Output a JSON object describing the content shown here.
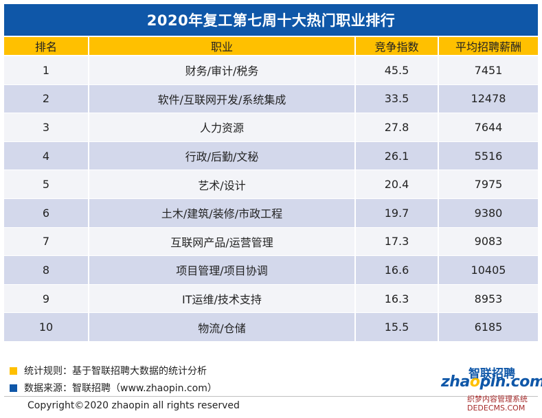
{
  "title": "2020年复工第七周十大热门职业排行",
  "table": {
    "headers": [
      "排名",
      "职业",
      "竞争指数",
      "平均招聘薪酬"
    ],
    "rows": [
      [
        "1",
        "财务/审计/税务",
        "45.5",
        "7451"
      ],
      [
        "2",
        "软件/互联网开发/系统集成",
        "33.5",
        "12478"
      ],
      [
        "3",
        "人力资源",
        "27.8",
        "7644"
      ],
      [
        "4",
        "行政/后勤/文秘",
        "26.1",
        "5516"
      ],
      [
        "5",
        "艺术/设计",
        "20.4",
        "7975"
      ],
      [
        "6",
        "土木/建筑/装修/市政工程",
        "19.7",
        "9380"
      ],
      [
        "7",
        "互联网产品/运营管理",
        "17.3",
        "9083"
      ],
      [
        "8",
        "项目管理/项目协调",
        "16.6",
        "10405"
      ],
      [
        "9",
        "IT运维/技术支持",
        "16.3",
        "8953"
      ],
      [
        "10",
        "物流/仓储",
        "15.5",
        "6185"
      ]
    ]
  },
  "footer": {
    "rule": "统计规则：基于智联招聘大数据的统计分析",
    "source": "数据来源：智联招聘（www.zhaopin.com）",
    "copyright": "Copyright©2020 zhaopin all rights reserved"
  },
  "logo": {
    "cn": "智联招聘",
    "en_pre": "zha",
    "en_o": "o",
    "en_post": "pin.com"
  },
  "watermark": {
    "line1": "织梦内容管理系统",
    "line2": "DEDECMS.COM"
  },
  "colors": {
    "title_bg": "#0f57a8",
    "header_bg": "#ffc000",
    "row_light": "#f3f4f8",
    "row_dark": "#d3d8eb"
  }
}
